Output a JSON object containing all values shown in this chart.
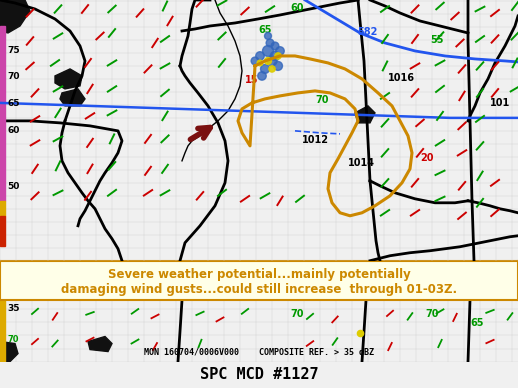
{
  "title": "SPC MCD #1127",
  "title_color": "#000000",
  "title_fontsize": 11,
  "annotation_text_line1": "Severe weather potential...mainly potentially",
  "annotation_text_line2": "damaging wind gusts...could still increase  through 01-03Z.",
  "annotation_text_color": "#cc8800",
  "annotation_text_size": 8.5,
  "annotation_bg": "#ffffe8",
  "annotation_border": "#cc8800",
  "bottom_label": "MON 160704/0006V000    COMPOSITE REF. > 35 dBZ",
  "bottom_label_color": "#000000",
  "map_bg": "#e8e6e0",
  "county_line_color": "#bbbbbb",
  "state_line_color": "#000000",
  "blue_line_color": "#2255ee",
  "magenta_bar_color": "#cc44aa",
  "orange_mcd_color": "#cc8800",
  "dark_red_arrow_color": "#7a1010",
  "pressure_label_color": "#000000",
  "green_label_color": "#009900",
  "red_label_color": "#cc0000",
  "figsize": [
    5.18,
    3.88
  ],
  "dpi": 100
}
